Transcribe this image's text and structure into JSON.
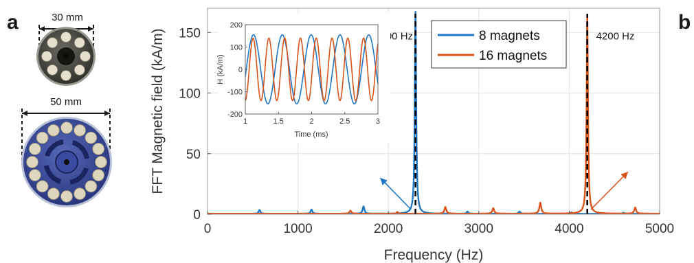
{
  "panels": {
    "left_letter": "a",
    "right_letter": "b"
  },
  "rotors": [
    {
      "dimension_label": "30 mm",
      "magnet_count": 8,
      "disk_color": "#4a4a44",
      "magnet_color": "#e6e1cf"
    },
    {
      "dimension_label": "50 mm",
      "magnet_count": 16,
      "disk_color": "#35479e",
      "magnet_color": "#ddd6bd"
    }
  ],
  "chart_data": [
    {
      "type": "line",
      "xlabel": "Frequency (Hz)",
      "ylabel": "FFT Magnetic field (kA/m)",
      "xlim": [
        0,
        5000
      ],
      "ylim": [
        0,
        170
      ],
      "xticks": [
        0,
        1000,
        2000,
        3000,
        4000,
        5000
      ],
      "yticks": [
        0,
        50,
        100,
        150
      ],
      "grid": true,
      "legend_position": "top-right",
      "series": [
        {
          "name": "8 magnets",
          "color": "#1f77c4",
          "baseline": 0.4,
          "peaks": [
            {
              "x": 575,
              "y": 3.5
            },
            {
              "x": 1150,
              "y": 3.8
            },
            {
              "x": 1725,
              "y": 6.5
            },
            {
              "x": 2300,
              "y": 167
            },
            {
              "x": 2875,
              "y": 2.2
            },
            {
              "x": 3450,
              "y": 2.2
            },
            {
              "x": 4025,
              "y": 1.5
            },
            {
              "x": 4600,
              "y": 1.3
            }
          ]
        },
        {
          "name": "16 magnets",
          "color": "#d95319",
          "baseline": 0.5,
          "peaks": [
            {
              "x": 1580,
              "y": 3.0
            },
            {
              "x": 2100,
              "y": 1.8
            },
            {
              "x": 2630,
              "y": 6.0
            },
            {
              "x": 3160,
              "y": 5.0
            },
            {
              "x": 3680,
              "y": 9.5
            },
            {
              "x": 4200,
              "y": 164
            },
            {
              "x": 4730,
              "y": 5.5
            }
          ]
        }
      ],
      "peak_markers": [
        2300,
        4200
      ],
      "annotations": [
        {
          "text": "2300 Hz",
          "x": 2300,
          "series": "8 magnets"
        },
        {
          "text": "4200 Hz",
          "x": 4200,
          "series": "16 magnets"
        }
      ]
    },
    {
      "type": "line",
      "xlabel": "Time (ms)",
      "ylabel": "H (kA/m)",
      "xlim": [
        1,
        3
      ],
      "ylim": [
        -200,
        200
      ],
      "xticks": [
        1,
        1.5,
        2,
        2.5,
        3
      ],
      "yticks": [
        -200,
        -100,
        0,
        100,
        200
      ],
      "series": [
        {
          "name": "8 magnets",
          "amplitude": 155,
          "frequency_hz": 2300,
          "phase_deg": 240,
          "color": "#1f77c4"
        },
        {
          "name": "16 magnets",
          "amplitude": 140,
          "frequency_hz": 4200,
          "phase_deg": 200,
          "color": "#d95319"
        }
      ]
    }
  ]
}
